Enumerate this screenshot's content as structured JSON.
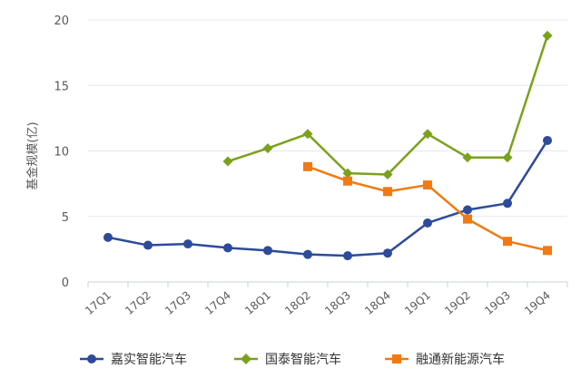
{
  "chart_data": {
    "type": "line",
    "title": "",
    "xlabel": "",
    "ylabel": "基金规模(亿)",
    "ylim": [
      0,
      20
    ],
    "yticks": [
      0,
      5,
      10,
      15,
      20
    ],
    "grid": true,
    "legend_position": "bottom",
    "categories": [
      "17Q1",
      "17Q2",
      "17Q3",
      "17Q4",
      "18Q1",
      "18Q2",
      "18Q3",
      "18Q4",
      "19Q1",
      "19Q2",
      "19Q3",
      "19Q4"
    ],
    "series": [
      {
        "name": "嘉实智能汽车",
        "color": "#2e4a9a",
        "marker": "circle",
        "values": [
          3.4,
          2.8,
          2.9,
          2.6,
          2.4,
          2.1,
          2.0,
          2.2,
          4.5,
          5.5,
          6.0,
          10.8
        ]
      },
      {
        "name": "国泰智能汽车",
        "color": "#7aa11c",
        "marker": "diamond",
        "values": [
          null,
          null,
          null,
          9.2,
          10.2,
          11.3,
          8.3,
          8.2,
          11.3,
          9.5,
          9.5,
          18.8
        ]
      },
      {
        "name": "融通新能源汽车",
        "color": "#f27a12",
        "marker": "square",
        "values": [
          null,
          null,
          null,
          null,
          null,
          8.8,
          7.7,
          6.9,
          7.4,
          4.8,
          3.1,
          2.4
        ]
      }
    ]
  }
}
